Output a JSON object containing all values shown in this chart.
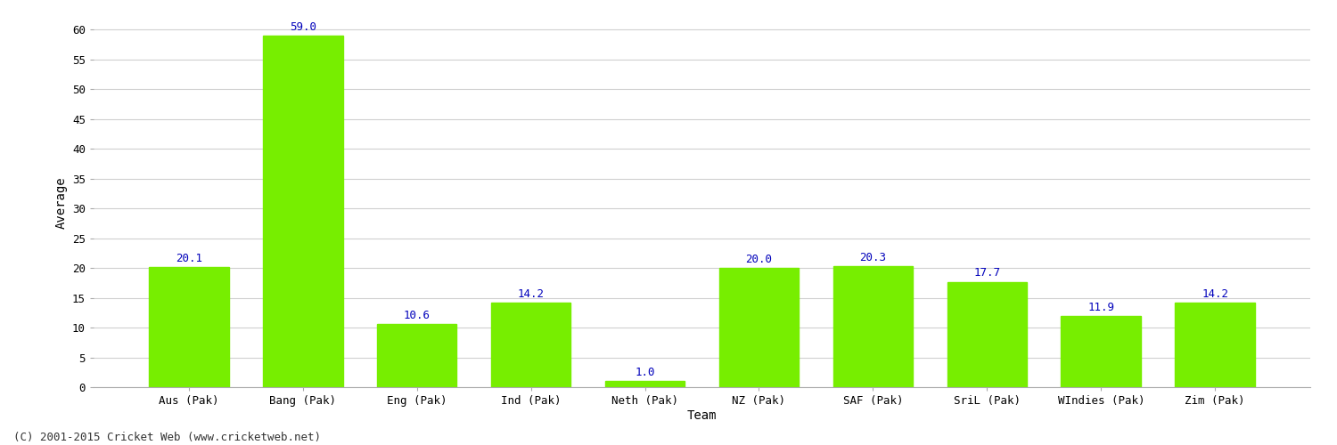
{
  "categories": [
    "Aus (Pak)",
    "Bang (Pak)",
    "Eng (Pak)",
    "Ind (Pak)",
    "Neth (Pak)",
    "NZ (Pak)",
    "SAF (Pak)",
    "SriL (Pak)",
    "WIndies (Pak)",
    "Zim (Pak)"
  ],
  "values": [
    20.1,
    59.0,
    10.6,
    14.2,
    1.0,
    20.0,
    20.3,
    17.7,
    11.9,
    14.2
  ],
  "bar_color": "#77ee00",
  "bar_edge_color": "#77ee00",
  "label_color": "#0000bb",
  "ylabel": "Average",
  "xlabel": "Team",
  "ylim": [
    0,
    62
  ],
  "yticks": [
    0,
    5,
    10,
    15,
    20,
    25,
    30,
    35,
    40,
    45,
    50,
    55,
    60
  ],
  "label_fontsize": 9,
  "axis_label_fontsize": 10,
  "tick_fontsize": 9,
  "footnote": "(C) 2001-2015 Cricket Web (www.cricketweb.net)",
  "footnote_fontsize": 9,
  "background_color": "#ffffff",
  "grid_color": "#d0d0d0"
}
